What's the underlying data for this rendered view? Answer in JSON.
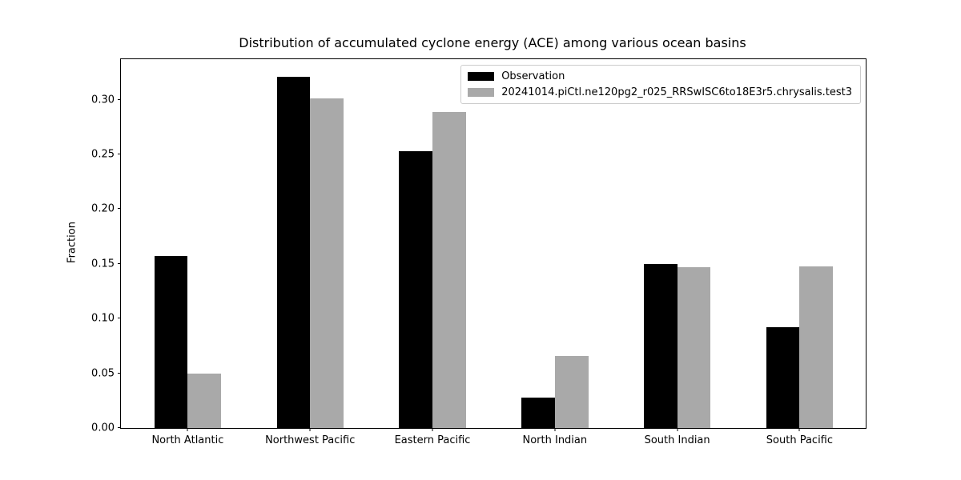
{
  "figure": {
    "background": "#ffffff",
    "spine_color": "#000000"
  },
  "chart_data": {
    "type": "bar",
    "title": "Distribution of accumulated cyclone energy (ACE) among various ocean basins",
    "xlabel": "",
    "ylabel": "Fraction",
    "categories": [
      "North Atlantic",
      "Northwest Pacific",
      "Eastern Pacific",
      "North Indian",
      "South Indian",
      "South Pacific"
    ],
    "series": [
      {
        "name": "Observation",
        "color": "#000000",
        "values": [
          0.157,
          0.321,
          0.253,
          0.028,
          0.15,
          0.092
        ]
      },
      {
        "name": "20241014.piCtl.ne120pg2_r025_RRSwISC6to18E3r5.chrysalis.test3",
        "color": "#a9a9a9",
        "values": [
          0.05,
          0.301,
          0.289,
          0.066,
          0.147,
          0.148
        ]
      }
    ],
    "ylim": [
      0,
      0.337
    ],
    "yticks": [
      0.0,
      0.05,
      0.1,
      0.15,
      0.2,
      0.25,
      0.3
    ],
    "ytick_format_decimals": 2,
    "grid": false,
    "legend_position": "upper right"
  }
}
